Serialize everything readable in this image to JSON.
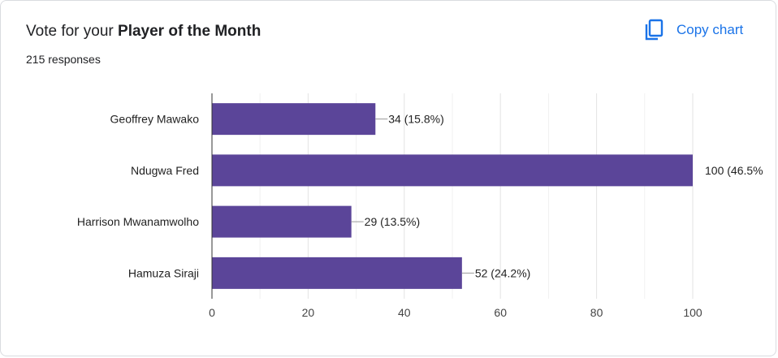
{
  "header": {
    "title_prefix": "Vote for your ",
    "title_bold": "Player of the Month",
    "responses": "215 responses",
    "copy_label": "Copy chart"
  },
  "colors": {
    "bar": "#5b4599",
    "accent": "#1a73e8",
    "grid": "#e8e8e8",
    "axis": "#333333",
    "text": "#202124"
  },
  "icons": {
    "copy": "copy-icon"
  },
  "chart_data": {
    "type": "bar",
    "orientation": "horizontal",
    "categories": [
      "Geoffrey Mawako",
      "Ndugwa Fred",
      "Harrison Mwanamwolho",
      "Hamuza Siraji"
    ],
    "values": [
      34,
      100,
      29,
      52
    ],
    "data_labels": [
      "34 (15.8%)",
      "100 (46.5%",
      "29 (13.5%)",
      "52 (24.2%)"
    ],
    "xlim": [
      0,
      100
    ],
    "xticks": [
      0,
      20,
      40,
      60,
      80,
      100
    ],
    "grid": true
  }
}
